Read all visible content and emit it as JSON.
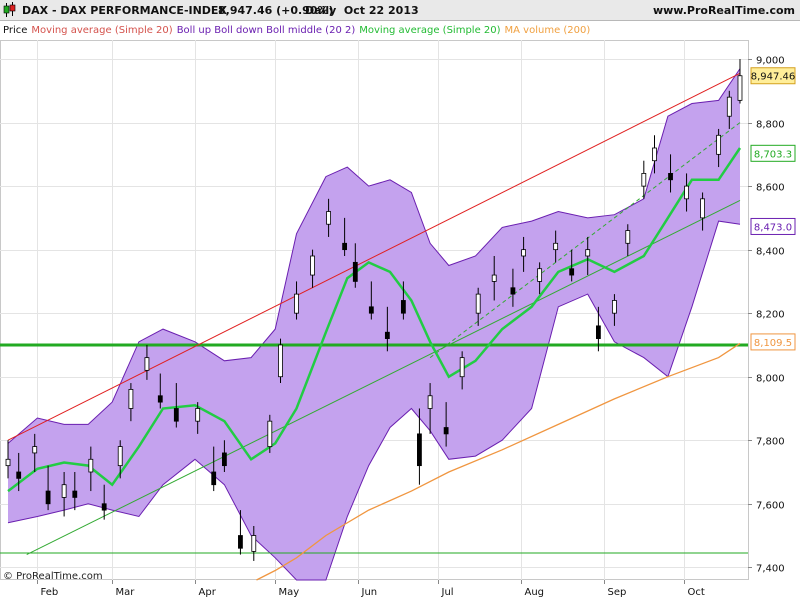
{
  "header": {
    "symbol": "DAX - DAX PERFORMANCE-INDEX",
    "price_change": "8,947.46 (+0.90%)",
    "period_date": "Daily  Oct 22 2013",
    "site": "www.ProRealTime.com",
    "copyright": "© ProRealTime.com"
  },
  "legend": [
    {
      "text": "Price",
      "color": "#000000"
    },
    {
      "text": "Moving average (Simple 20)",
      "color": "#d4524c"
    },
    {
      "text": "Boll up Boll down Boll middle (20 2)",
      "color": "#6a1fb0"
    },
    {
      "text": "Moving average (Simple 20)",
      "color": "#22bb33"
    },
    {
      "text": "MA volume (200)",
      "color": "#f0a040"
    }
  ],
  "colors": {
    "band_fill": "#c4a2ee",
    "band_edge": "#6a1fb0",
    "ma20": "#22cc44",
    "ma200": "#f09640",
    "channel_upper": "#e02020",
    "channel_lower": "#33aa33",
    "support": "#22aa22",
    "candle": "#000000"
  },
  "chart_data": {
    "type": "candlestick",
    "y_axis_ticks": [
      "7,400",
      "7,600",
      "7,800",
      "8,000",
      "8,200",
      "8,400",
      "8,600",
      "8,800",
      "9,000"
    ],
    "x_axis_ticks": [
      "Feb",
      "Mar",
      "Apr",
      "May",
      "Jun",
      "Jul",
      "Aug",
      "Sep",
      "Oct"
    ],
    "ylim": [
      7360,
      9060
    ],
    "last_price": 8947.46,
    "price_labels": [
      {
        "text": "8,947.46",
        "value": 8947.46,
        "bg": "#ffee99",
        "fg": "#111111",
        "border": "#d4a020"
      },
      {
        "text": "8,703.3",
        "value": 8703.3,
        "bg": "#ffffff",
        "fg": "#22aa22",
        "border": "#22aa22"
      },
      {
        "text": "8,473.0",
        "value": 8473.0,
        "bg": "#ffffff",
        "fg": "#6a1fb0",
        "border": "#6a1fb0"
      },
      {
        "text": "8,109.5",
        "value": 8109.5,
        "bg": "#ffffff",
        "fg": "#f09640",
        "border": "#f09640"
      }
    ],
    "support_levels": [
      8100,
      7445
    ],
    "channel": {
      "upper": [
        {
          "date": "2013-01-21",
          "value": 7800
        },
        {
          "date": "2013-10-22",
          "value": 8955
        }
      ],
      "lower": [
        {
          "date": "2013-01-28",
          "value": 7440
        },
        {
          "date": "2013-10-22",
          "value": 8555
        }
      ],
      "mid_dashed": [
        {
          "date": "2013-06-28",
          "value": 8060
        },
        {
          "date": "2013-10-22",
          "value": 8800
        }
      ]
    },
    "series": [
      {
        "name": "Boll up",
        "points": [
          [
            "2013-01-21",
            7790
          ],
          [
            "2013-02-01",
            7870
          ],
          [
            "2013-02-11",
            7850
          ],
          [
            "2013-02-20",
            7850
          ],
          [
            "2013-03-01",
            7920
          ],
          [
            "2013-03-11",
            8110
          ],
          [
            "2013-03-20",
            8150
          ],
          [
            "2013-04-01",
            8110
          ],
          [
            "2013-04-12",
            8050
          ],
          [
            "2013-04-22",
            8060
          ],
          [
            "2013-05-01",
            8150
          ],
          [
            "2013-05-09",
            8450
          ],
          [
            "2013-05-20",
            8630
          ],
          [
            "2013-05-28",
            8660
          ],
          [
            "2013-06-05",
            8600
          ],
          [
            "2013-06-13",
            8620
          ],
          [
            "2013-06-21",
            8580
          ],
          [
            "2013-06-28",
            8420
          ],
          [
            "2013-07-05",
            8350
          ],
          [
            "2013-07-15",
            8380
          ],
          [
            "2013-07-25",
            8470
          ],
          [
            "2013-08-05",
            8490
          ],
          [
            "2013-08-15",
            8520
          ],
          [
            "2013-08-26",
            8500
          ],
          [
            "2013-09-05",
            8510
          ],
          [
            "2013-09-16",
            8560
          ],
          [
            "2013-09-25",
            8820
          ],
          [
            "2013-10-04",
            8860
          ],
          [
            "2013-10-14",
            8870
          ],
          [
            "2013-10-22",
            8970
          ]
        ]
      },
      {
        "name": "Boll down",
        "points": [
          [
            "2013-01-21",
            7540
          ],
          [
            "2013-02-01",
            7560
          ],
          [
            "2013-02-11",
            7580
          ],
          [
            "2013-02-20",
            7600
          ],
          [
            "2013-03-01",
            7580
          ],
          [
            "2013-03-11",
            7560
          ],
          [
            "2013-03-20",
            7660
          ],
          [
            "2013-04-01",
            7740
          ],
          [
            "2013-04-12",
            7660
          ],
          [
            "2013-04-22",
            7500
          ],
          [
            "2013-05-01",
            7430
          ],
          [
            "2013-05-09",
            7360
          ],
          [
            "2013-05-20",
            7360
          ],
          [
            "2013-05-28",
            7560
          ],
          [
            "2013-06-05",
            7720
          ],
          [
            "2013-06-13",
            7840
          ],
          [
            "2013-06-21",
            7900
          ],
          [
            "2013-06-28",
            7830
          ],
          [
            "2013-07-05",
            7740
          ],
          [
            "2013-07-15",
            7750
          ],
          [
            "2013-07-25",
            7800
          ],
          [
            "2013-08-05",
            7900
          ],
          [
            "2013-08-15",
            8220
          ],
          [
            "2013-08-26",
            8260
          ],
          [
            "2013-09-05",
            8110
          ],
          [
            "2013-09-16",
            8060
          ],
          [
            "2013-09-25",
            8000
          ],
          [
            "2013-10-04",
            8220
          ],
          [
            "2013-10-14",
            8490
          ],
          [
            "2013-10-22",
            8480
          ]
        ]
      },
      {
        "name": "Moving average (Simple 20)",
        "points": [
          [
            "2013-01-21",
            7640
          ],
          [
            "2013-02-01",
            7710
          ],
          [
            "2013-02-11",
            7730
          ],
          [
            "2013-02-20",
            7720
          ],
          [
            "2013-03-01",
            7660
          ],
          [
            "2013-03-11",
            7780
          ],
          [
            "2013-03-20",
            7900
          ],
          [
            "2013-04-01",
            7910
          ],
          [
            "2013-04-12",
            7860
          ],
          [
            "2013-04-22",
            7740
          ],
          [
            "2013-05-01",
            7790
          ],
          [
            "2013-05-09",
            7900
          ],
          [
            "2013-05-20",
            8140
          ],
          [
            "2013-05-28",
            8310
          ],
          [
            "2013-06-05",
            8360
          ],
          [
            "2013-06-13",
            8330
          ],
          [
            "2013-06-21",
            8240
          ],
          [
            "2013-06-28",
            8110
          ],
          [
            "2013-07-05",
            8000
          ],
          [
            "2013-07-15",
            8050
          ],
          [
            "2013-07-25",
            8150
          ],
          [
            "2013-08-05",
            8220
          ],
          [
            "2013-08-15",
            8330
          ],
          [
            "2013-08-26",
            8370
          ],
          [
            "2013-09-05",
            8330
          ],
          [
            "2013-09-16",
            8380
          ],
          [
            "2013-09-25",
            8500
          ],
          [
            "2013-10-04",
            8620
          ],
          [
            "2013-10-14",
            8620
          ],
          [
            "2013-10-22",
            8720
          ]
        ]
      },
      {
        "name": "MA volume (200)",
        "points": [
          [
            "2013-04-24",
            7360
          ],
          [
            "2013-05-01",
            7390
          ],
          [
            "2013-05-09",
            7430
          ],
          [
            "2013-05-20",
            7500
          ],
          [
            "2013-06-05",
            7580
          ],
          [
            "2013-06-21",
            7640
          ],
          [
            "2013-07-05",
            7700
          ],
          [
            "2013-07-25",
            7770
          ],
          [
            "2013-08-15",
            7850
          ],
          [
            "2013-09-05",
            7930
          ],
          [
            "2013-09-25",
            8000
          ],
          [
            "2013-10-14",
            8060
          ],
          [
            "2013-10-22",
            8105
          ]
        ]
      }
    ],
    "candles": [
      {
        "date": "2013-01-21",
        "open": 7720,
        "high": 7800,
        "low": 7680,
        "close": 7740
      },
      {
        "date": "2013-01-25",
        "open": 7700,
        "high": 7760,
        "low": 7640,
        "close": 7680
      },
      {
        "date": "2013-01-31",
        "open": 7760,
        "high": 7820,
        "low": 7700,
        "close": 7780
      },
      {
        "date": "2013-02-05",
        "open": 7640,
        "high": 7720,
        "low": 7580,
        "close": 7600
      },
      {
        "date": "2013-02-11",
        "open": 7620,
        "high": 7700,
        "low": 7560,
        "close": 7660
      },
      {
        "date": "2013-02-15",
        "open": 7640,
        "high": 7700,
        "low": 7580,
        "close": 7620
      },
      {
        "date": "2013-02-21",
        "open": 7700,
        "high": 7780,
        "low": 7640,
        "close": 7740
      },
      {
        "date": "2013-02-26",
        "open": 7600,
        "high": 7660,
        "low": 7550,
        "close": 7580
      },
      {
        "date": "2013-03-04",
        "open": 7720,
        "high": 7800,
        "low": 7680,
        "close": 7780
      },
      {
        "date": "2013-03-08",
        "open": 7900,
        "high": 7980,
        "low": 7860,
        "close": 7960
      },
      {
        "date": "2013-03-14",
        "open": 8020,
        "high": 8100,
        "low": 7990,
        "close": 8060
      },
      {
        "date": "2013-03-19",
        "open": 7940,
        "high": 8010,
        "low": 7900,
        "close": 7920
      },
      {
        "date": "2013-03-25",
        "open": 7900,
        "high": 7980,
        "low": 7840,
        "close": 7860
      },
      {
        "date": "2013-04-02",
        "open": 7860,
        "high": 7920,
        "low": 7820,
        "close": 7900
      },
      {
        "date": "2013-04-08",
        "open": 7700,
        "high": 7780,
        "low": 7640,
        "close": 7660
      },
      {
        "date": "2013-04-12",
        "open": 7760,
        "high": 7800,
        "low": 7700,
        "close": 7720
      },
      {
        "date": "2013-04-18",
        "open": 7500,
        "high": 7580,
        "low": 7440,
        "close": 7460
      },
      {
        "date": "2013-04-23",
        "open": 7450,
        "high": 7530,
        "low": 7420,
        "close": 7500
      },
      {
        "date": "2013-04-29",
        "open": 7780,
        "high": 7880,
        "low": 7760,
        "close": 7860
      },
      {
        "date": "2013-05-03",
        "open": 8000,
        "high": 8120,
        "low": 7980,
        "close": 8100
      },
      {
        "date": "2013-05-09",
        "open": 8200,
        "high": 8300,
        "low": 8180,
        "close": 8260
      },
      {
        "date": "2013-05-15",
        "open": 8320,
        "high": 8400,
        "low": 8280,
        "close": 8380
      },
      {
        "date": "2013-05-21",
        "open": 8480,
        "high": 8560,
        "low": 8440,
        "close": 8520
      },
      {
        "date": "2013-05-27",
        "open": 8420,
        "high": 8500,
        "low": 8380,
        "close": 8400
      },
      {
        "date": "2013-05-31",
        "open": 8360,
        "high": 8420,
        "low": 8280,
        "close": 8300
      },
      {
        "date": "2013-06-06",
        "open": 8220,
        "high": 8300,
        "low": 8180,
        "close": 8200
      },
      {
        "date": "2013-06-12",
        "open": 8140,
        "high": 8220,
        "low": 8080,
        "close": 8120
      },
      {
        "date": "2013-06-18",
        "open": 8240,
        "high": 8300,
        "low": 8180,
        "close": 8200
      },
      {
        "date": "2013-06-24",
        "open": 7820,
        "high": 7900,
        "low": 7660,
        "close": 7720
      },
      {
        "date": "2013-06-28",
        "open": 7900,
        "high": 7980,
        "low": 7820,
        "close": 7940
      },
      {
        "date": "2013-07-04",
        "open": 7840,
        "high": 7920,
        "low": 7780,
        "close": 7820
      },
      {
        "date": "2013-07-10",
        "open": 8000,
        "high": 8080,
        "low": 7960,
        "close": 8060
      },
      {
        "date": "2013-07-16",
        "open": 8200,
        "high": 8280,
        "low": 8160,
        "close": 8260
      },
      {
        "date": "2013-07-22",
        "open": 8300,
        "high": 8380,
        "low": 8240,
        "close": 8320
      },
      {
        "date": "2013-07-29",
        "open": 8280,
        "high": 8340,
        "low": 8220,
        "close": 8260
      },
      {
        "date": "2013-08-02",
        "open": 8380,
        "high": 8440,
        "low": 8330,
        "close": 8400
      },
      {
        "date": "2013-08-08",
        "open": 8300,
        "high": 8360,
        "low": 8260,
        "close": 8340
      },
      {
        "date": "2013-08-14",
        "open": 8400,
        "high": 8460,
        "low": 8360,
        "close": 8420
      },
      {
        "date": "2013-08-20",
        "open": 8340,
        "high": 8400,
        "low": 8300,
        "close": 8320
      },
      {
        "date": "2013-08-26",
        "open": 8380,
        "high": 8440,
        "low": 8320,
        "close": 8400
      },
      {
        "date": "2013-08-30",
        "open": 8160,
        "high": 8220,
        "low": 8080,
        "close": 8120
      },
      {
        "date": "2013-09-05",
        "open": 8200,
        "high": 8260,
        "low": 8160,
        "close": 8240
      },
      {
        "date": "2013-09-10",
        "open": 8420,
        "high": 8480,
        "low": 8380,
        "close": 8460
      },
      {
        "date": "2013-09-16",
        "open": 8600,
        "high": 8680,
        "low": 8560,
        "close": 8640
      },
      {
        "date": "2013-09-20",
        "open": 8680,
        "high": 8760,
        "low": 8640,
        "close": 8720
      },
      {
        "date": "2013-09-26",
        "open": 8640,
        "high": 8700,
        "low": 8580,
        "close": 8620
      },
      {
        "date": "2013-10-02",
        "open": 8560,
        "high": 8640,
        "low": 8520,
        "close": 8600
      },
      {
        "date": "2013-10-08",
        "open": 8500,
        "high": 8580,
        "low": 8460,
        "close": 8560
      },
      {
        "date": "2013-10-14",
        "open": 8700,
        "high": 8780,
        "low": 8660,
        "close": 8760
      },
      {
        "date": "2013-10-18",
        "open": 8820,
        "high": 8900,
        "low": 8780,
        "close": 8880
      },
      {
        "date": "2013-10-22",
        "open": 8870,
        "high": 9000,
        "low": 8860,
        "close": 8947.46
      }
    ]
  }
}
